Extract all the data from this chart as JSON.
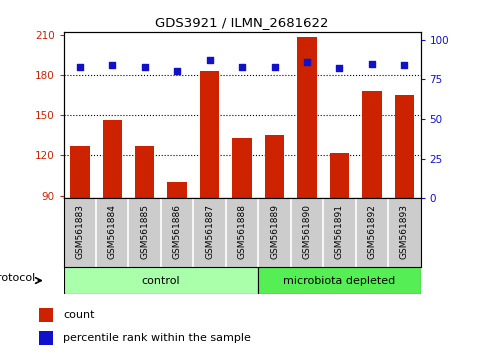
{
  "title": "GDS3921 / ILMN_2681622",
  "samples": [
    "GSM561883",
    "GSM561884",
    "GSM561885",
    "GSM561886",
    "GSM561887",
    "GSM561888",
    "GSM561889",
    "GSM561890",
    "GSM561891",
    "GSM561892",
    "GSM561893"
  ],
  "counts": [
    127,
    146,
    127,
    100,
    183,
    133,
    135,
    208,
    122,
    168,
    165
  ],
  "percentile_ranks": [
    83,
    84,
    83,
    80,
    87,
    83,
    83,
    86,
    82,
    85,
    84
  ],
  "groups": [
    "control",
    "control",
    "control",
    "control",
    "control",
    "control",
    "microbiota depleted",
    "microbiota depleted",
    "microbiota depleted",
    "microbiota depleted",
    "microbiota depleted"
  ],
  "bar_color": "#cc2200",
  "dot_color": "#1111cc",
  "ylim_left": [
    88,
    212
  ],
  "yticks_left": [
    90,
    120,
    150,
    180,
    210
  ],
  "ylim_right": [
    0,
    105
  ],
  "yticks_right": [
    0,
    25,
    50,
    75,
    100
  ],
  "control_color": "#aaffaa",
  "microbiota_color": "#55ee55",
  "tick_label_color_left": "#cc2200",
  "tick_label_color_right": "#1111cc",
  "grid_lines": [
    120,
    150,
    180
  ],
  "legend_count_label": "count",
  "legend_pct_label": "percentile rank within the sample",
  "protocol_label": "protocol",
  "gray_box_color": "#cccccc",
  "white_bg": "#ffffff"
}
